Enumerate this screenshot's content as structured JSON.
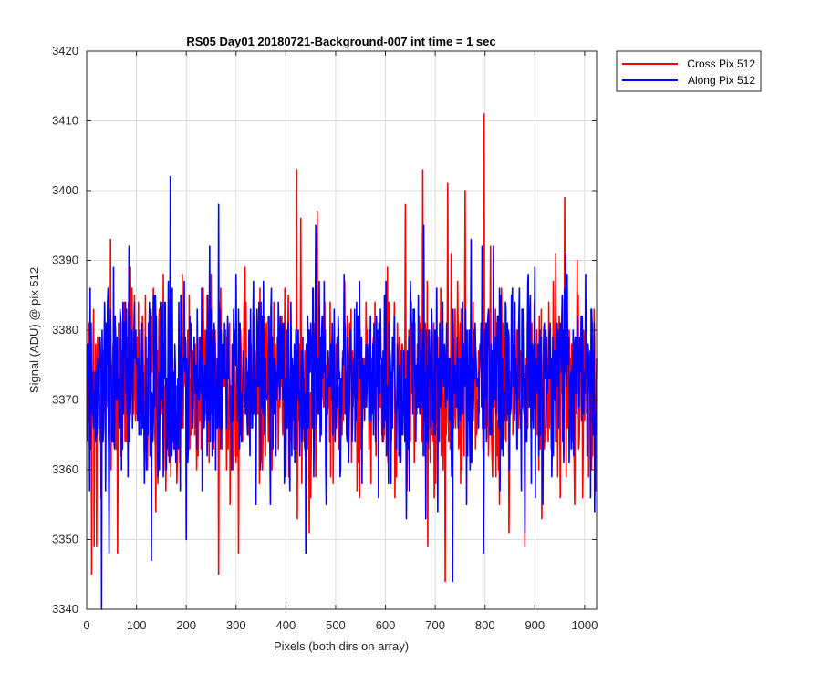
{
  "chart_data": {
    "type": "line",
    "title": "RS05 Day01 20180721-Background-007 int time = 1 sec",
    "xlabel": "Pixels (both dirs on array)",
    "ylabel": "Signal (ADU) @ pix 512",
    "xlim": [
      0,
      1024
    ],
    "ylim": [
      3340,
      3420
    ],
    "x_ticks": [
      0,
      100,
      200,
      300,
      400,
      500,
      600,
      700,
      800,
      900,
      1000
    ],
    "y_ticks": [
      3340,
      3350,
      3360,
      3370,
      3380,
      3390,
      3400,
      3410,
      3420
    ],
    "grid": true,
    "legend_position": "outside top-right",
    "x_range": [
      1,
      1024
    ],
    "series": [
      {
        "name": "Cross Pix 512",
        "color": "#ff0000",
        "mean": 3372,
        "notable_points": [
          {
            "x": 10,
            "y": 3345
          },
          {
            "x": 15,
            "y": 3349
          },
          {
            "x": 20,
            "y": 3349
          },
          {
            "x": 48,
            "y": 3393
          },
          {
            "x": 62,
            "y": 3348
          },
          {
            "x": 265,
            "y": 3345
          },
          {
            "x": 305,
            "y": 3348
          },
          {
            "x": 422,
            "y": 3403
          },
          {
            "x": 430,
            "y": 3396
          },
          {
            "x": 463,
            "y": 3397
          },
          {
            "x": 640,
            "y": 3398
          },
          {
            "x": 675,
            "y": 3403
          },
          {
            "x": 685,
            "y": 3349
          },
          {
            "x": 720,
            "y": 3344
          },
          {
            "x": 725,
            "y": 3401
          },
          {
            "x": 760,
            "y": 3400
          },
          {
            "x": 798,
            "y": 3411
          },
          {
            "x": 880,
            "y": 3349
          },
          {
            "x": 960,
            "y": 3399
          },
          {
            "x": 985,
            "y": 3390
          }
        ]
      },
      {
        "name": "Along Pix 512",
        "color": "#0000ff",
        "mean": 3373,
        "notable_points": [
          {
            "x": 30,
            "y": 3340
          },
          {
            "x": 45,
            "y": 3348
          },
          {
            "x": 130,
            "y": 3347
          },
          {
            "x": 168,
            "y": 3402
          },
          {
            "x": 200,
            "y": 3350
          },
          {
            "x": 265,
            "y": 3398
          },
          {
            "x": 440,
            "y": 3348
          },
          {
            "x": 460,
            "y": 3395
          },
          {
            "x": 642,
            "y": 3353
          },
          {
            "x": 735,
            "y": 3344
          },
          {
            "x": 797,
            "y": 3348
          },
          {
            "x": 880,
            "y": 3351
          },
          {
            "x": 1020,
            "y": 3354
          }
        ]
      }
    ]
  }
}
